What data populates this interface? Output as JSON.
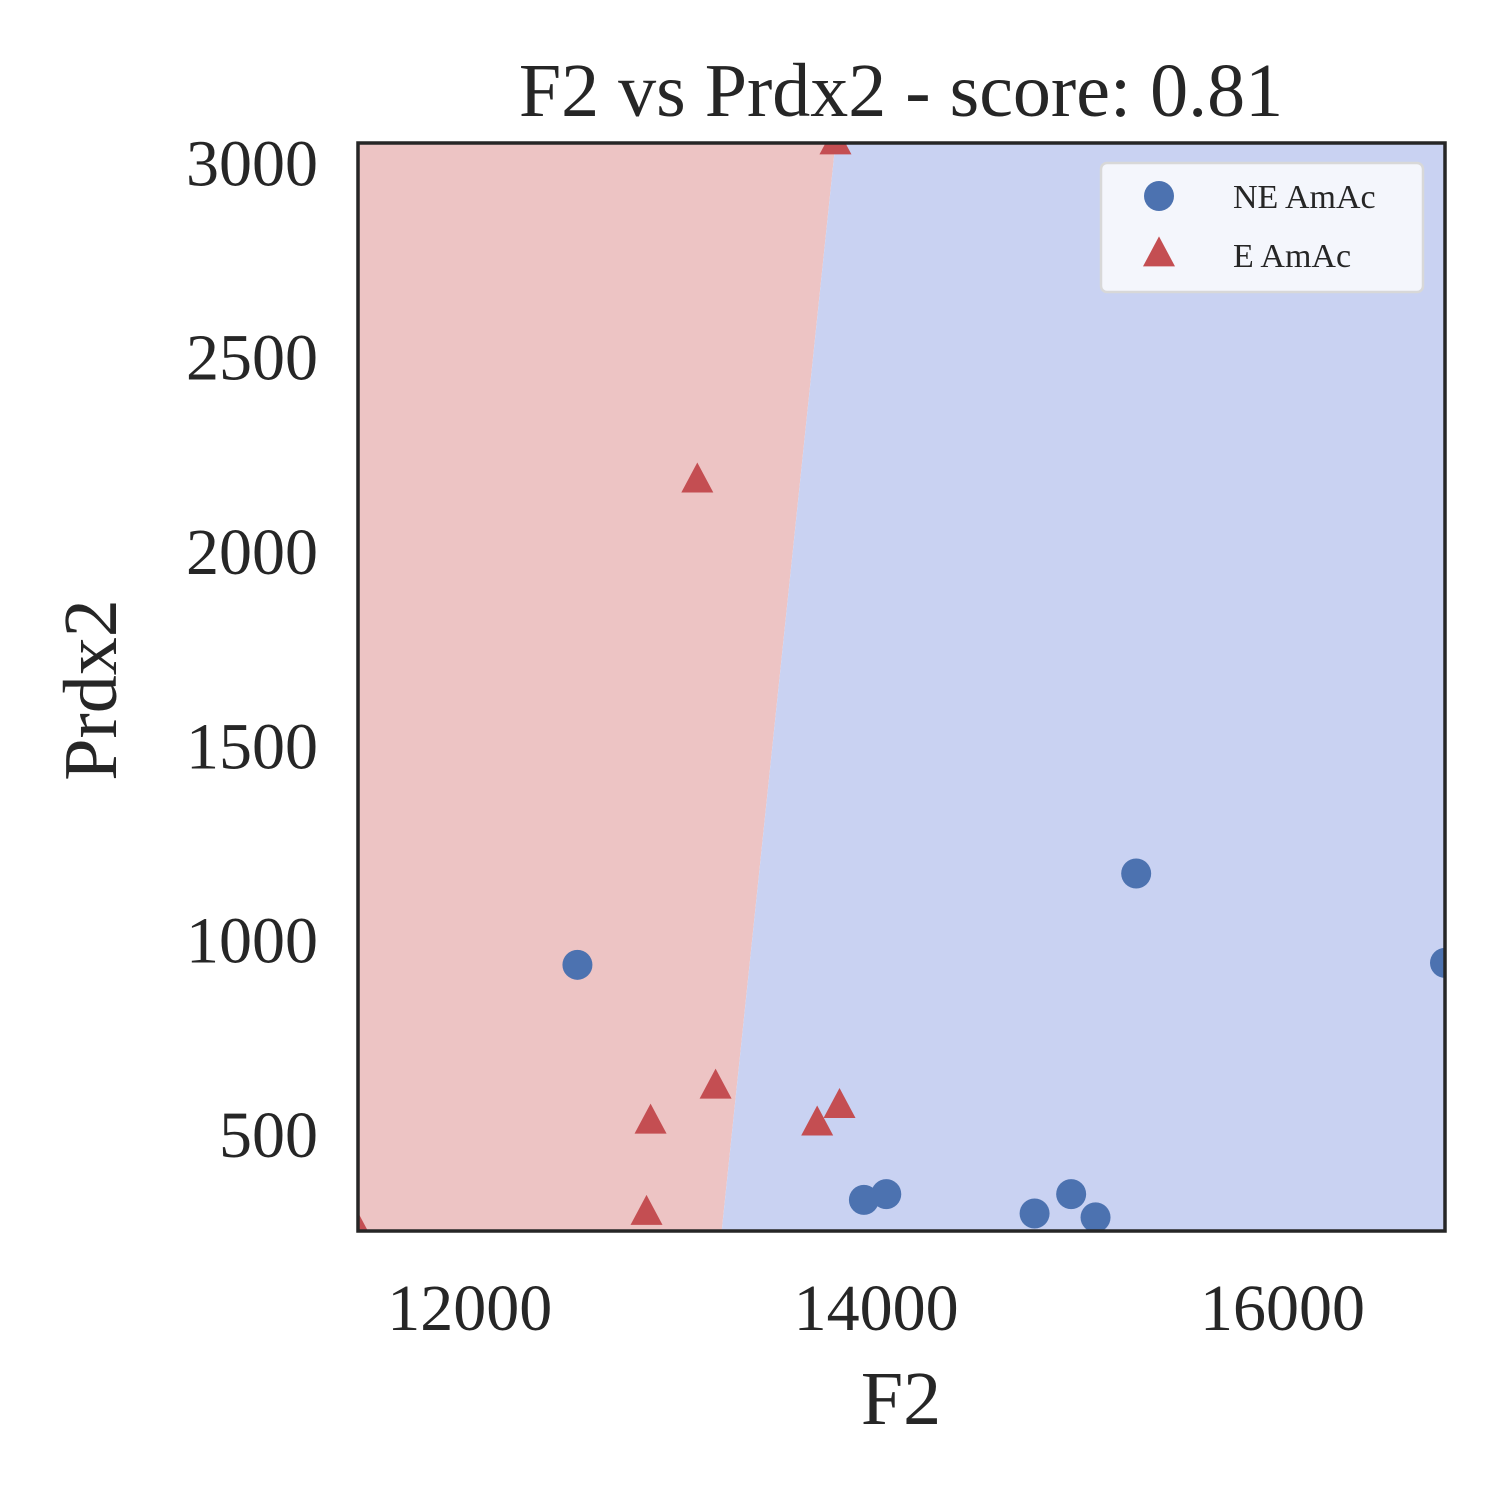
{
  "chart_data": {
    "type": "scatter",
    "title": "F2 vs Prdx2 - score: 0.81",
    "xlabel": "F2",
    "ylabel": "Prdx2",
    "xlim": [
      11450,
      16800
    ],
    "ylim": [
      250,
      3050
    ],
    "xticks": [
      12000,
      14000,
      16000
    ],
    "yticks": [
      500,
      1000,
      1500,
      2000,
      2500,
      3000
    ],
    "xtick_labels": [
      "12000",
      "14000",
      "16000"
    ],
    "ytick_labels": [
      "500",
      "1000",
      "1500",
      "2000",
      "2500",
      "3000"
    ],
    "grid": false,
    "legend_position": "top-right",
    "colors": {
      "ne_marker": "#4c72b0",
      "e_marker": "#c44e52",
      "region_e": "#edc4c4",
      "region_ne": "#c9d2f2",
      "frame": "#262626"
    },
    "decision_boundary": {
      "top": {
        "x": 13800,
        "y": 3050
      },
      "bottom": {
        "x": 13240,
        "y": 250
      }
    },
    "series": [
      {
        "name": "NE AmAc",
        "marker": "circle",
        "points": [
          {
            "x": 12530,
            "y": 935
          },
          {
            "x": 13940,
            "y": 330
          },
          {
            "x": 14050,
            "y": 345
          },
          {
            "x": 14780,
            "y": 295
          },
          {
            "x": 14960,
            "y": 345
          },
          {
            "x": 15080,
            "y": 285
          },
          {
            "x": 15280,
            "y": 1170
          },
          {
            "x": 16800,
            "y": 940
          }
        ]
      },
      {
        "name": "E AmAc",
        "marker": "triangle",
        "points": [
          {
            "x": 13800,
            "y": 3050
          },
          {
            "x": 13120,
            "y": 2180
          },
          {
            "x": 13210,
            "y": 620
          },
          {
            "x": 12890,
            "y": 530
          },
          {
            "x": 12870,
            "y": 295
          },
          {
            "x": 13710,
            "y": 525
          },
          {
            "x": 13820,
            "y": 570
          },
          {
            "x": 11450,
            "y": 250
          }
        ]
      }
    ]
  }
}
